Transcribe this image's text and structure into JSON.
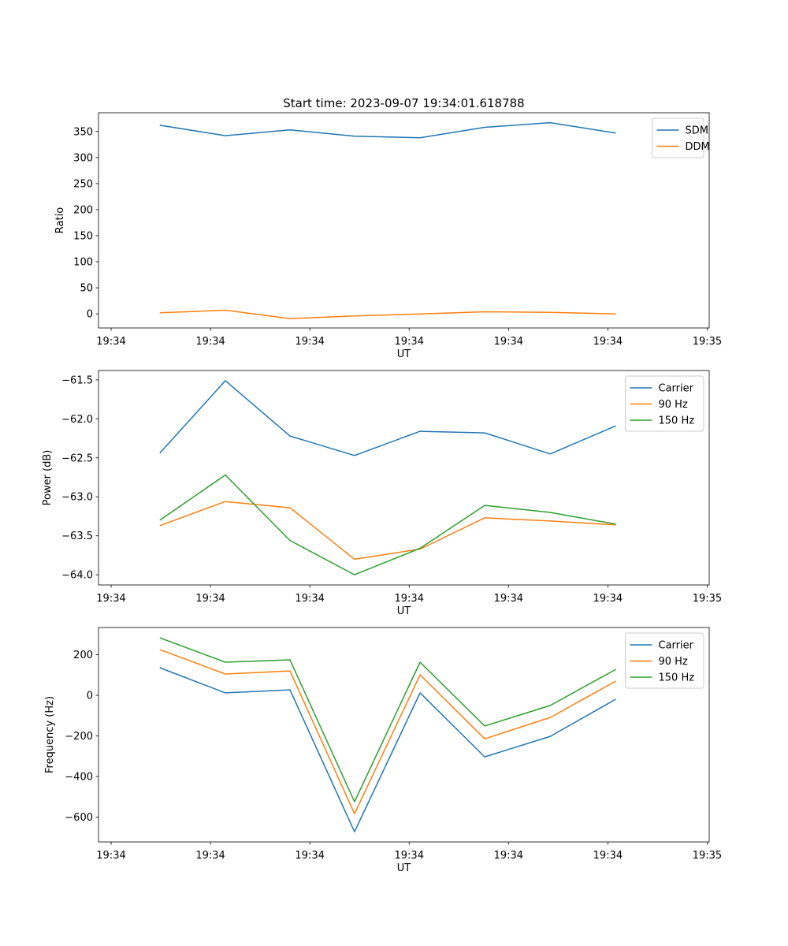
{
  "chart_data": [
    {
      "type": "line",
      "title": "Start time: 2023-09-07 19:34:01.618788",
      "xlabel": "UT",
      "ylabel": "Ratio",
      "xlim": [
        -1.27,
        60.2
      ],
      "ylim": [
        -27,
        386
      ],
      "xticks": [
        0,
        10,
        20,
        30,
        40,
        50,
        60
      ],
      "xtick_labels": [
        "19:34",
        "19:34",
        "19:34",
        "19:34",
        "19:34",
        "19:34",
        "19:35"
      ],
      "yticks": [
        0,
        50,
        100,
        150,
        200,
        250,
        300,
        350
      ],
      "ytick_labels": [
        "0",
        "50",
        "100",
        "150",
        "200",
        "250",
        "300",
        "350"
      ],
      "legend": "top-right",
      "x": [
        4.9,
        11.5,
        18.0,
        24.5,
        31.1,
        37.6,
        44.2,
        50.8
      ],
      "series": [
        {
          "name": "SDM",
          "color": "#1f77b4",
          "values": [
            362,
            342,
            353,
            341,
            338,
            358,
            367,
            347
          ]
        },
        {
          "name": "DDM",
          "color": "#ff7f0e",
          "values": [
            2,
            7,
            -9,
            -4,
            0,
            4,
            3,
            0
          ]
        }
      ]
    },
    {
      "type": "line",
      "title": "",
      "xlabel": "UT",
      "ylabel": "Power (dB)",
      "xlim": [
        -1.27,
        60.2
      ],
      "ylim": [
        -64.13,
        -61.38
      ],
      "xticks": [
        0,
        10,
        20,
        30,
        40,
        50,
        60
      ],
      "xtick_labels": [
        "19:34",
        "19:34",
        "19:34",
        "19:34",
        "19:34",
        "19:34",
        "19:35"
      ],
      "yticks": [
        -64.0,
        -63.5,
        -63.0,
        -62.5,
        -62.0,
        -61.5
      ],
      "ytick_labels": [
        "−64.0",
        "−63.5",
        "−63.0",
        "−62.5",
        "−62.0",
        "−61.5"
      ],
      "legend": "top-right",
      "x": [
        4.9,
        11.5,
        18.0,
        24.5,
        31.1,
        37.6,
        44.2,
        50.8
      ],
      "series": [
        {
          "name": "Carrier",
          "color": "#1f77b4",
          "values": [
            -62.44,
            -61.51,
            -62.22,
            -62.47,
            -62.16,
            -62.18,
            -62.45,
            -62.09
          ]
        },
        {
          "name": "90 Hz",
          "color": "#ff7f0e",
          "values": [
            -63.37,
            -63.06,
            -63.14,
            -63.8,
            -63.67,
            -63.27,
            -63.31,
            -63.36
          ]
        },
        {
          "name": "150 Hz",
          "color": "#2ca02c",
          "values": [
            -63.3,
            -62.72,
            -63.56,
            -64.0,
            -63.66,
            -63.11,
            -63.2,
            -63.35
          ]
        }
      ]
    },
    {
      "type": "line",
      "title": "",
      "xlabel": "UT",
      "ylabel": "Frequency (Hz)",
      "xlim": [
        -1.27,
        60.2
      ],
      "ylim": [
        -722,
        334
      ],
      "xticks": [
        0,
        10,
        20,
        30,
        40,
        50,
        60
      ],
      "xtick_labels": [
        "19:34",
        "19:34",
        "19:34",
        "19:34",
        "19:34",
        "19:34",
        "19:35"
      ],
      "yticks": [
        -600,
        -400,
        -200,
        0,
        200
      ],
      "ytick_labels": [
        "−600",
        "−400",
        "−200",
        "0",
        "200"
      ],
      "legend": "top-right",
      "x": [
        4.9,
        11.5,
        18.0,
        24.5,
        31.1,
        37.6,
        44.2,
        50.8
      ],
      "series": [
        {
          "name": "Carrier",
          "color": "#1f77b4",
          "values": [
            136,
            12,
            27,
            -672,
            12,
            -303,
            -202,
            -19
          ]
        },
        {
          "name": "90 Hz",
          "color": "#ff7f0e",
          "values": [
            225,
            105,
            120,
            -583,
            101,
            -214,
            -109,
            70
          ]
        },
        {
          "name": "150 Hz",
          "color": "#2ca02c",
          "values": [
            283,
            163,
            175,
            -524,
            163,
            -151,
            -50,
            128
          ]
        }
      ]
    }
  ]
}
